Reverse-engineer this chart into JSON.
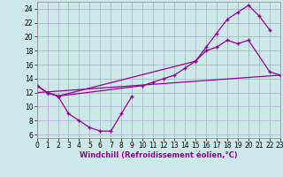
{
  "bg_color": "#cce8e8",
  "grid_color": "#aaaacc",
  "line_color": "#990099",
  "xlim": [
    0,
    23
  ],
  "ylim": [
    5.5,
    25
  ],
  "xticks": [
    0,
    1,
    2,
    3,
    4,
    5,
    6,
    7,
    8,
    9,
    10,
    11,
    12,
    13,
    14,
    15,
    16,
    17,
    18,
    19,
    20,
    21,
    22,
    23
  ],
  "yticks": [
    6,
    8,
    10,
    12,
    14,
    16,
    18,
    20,
    22,
    24
  ],
  "xlabel": "Windchill (Refroidissement éolien,°C)",
  "series": [
    {
      "x": [
        0,
        1,
        2,
        3,
        4,
        5,
        6,
        7,
        8,
        9
      ],
      "y": [
        13,
        12,
        11.5,
        9,
        8,
        7,
        6.5,
        6.5,
        9,
        11.5
      ],
      "marker": true
    },
    {
      "x": [
        0,
        1,
        2,
        10,
        11,
        12,
        13,
        14,
        15,
        16,
        17,
        18,
        19,
        20,
        22,
        23
      ],
      "y": [
        13,
        12,
        11.5,
        13,
        13.5,
        14,
        14.5,
        15.5,
        16.5,
        18,
        18.5,
        19.5,
        19,
        19.5,
        15,
        14.5
      ],
      "marker": true
    },
    {
      "x": [
        0,
        1,
        2,
        15,
        16,
        17,
        18,
        19,
        20,
        21,
        22
      ],
      "y": [
        13,
        12,
        11.5,
        16.5,
        18.5,
        20.5,
        22.5,
        23.5,
        24.5,
        23,
        21
      ],
      "marker": true
    },
    {
      "x": [
        0,
        23
      ],
      "y": [
        12,
        14.5
      ],
      "marker": false
    }
  ]
}
